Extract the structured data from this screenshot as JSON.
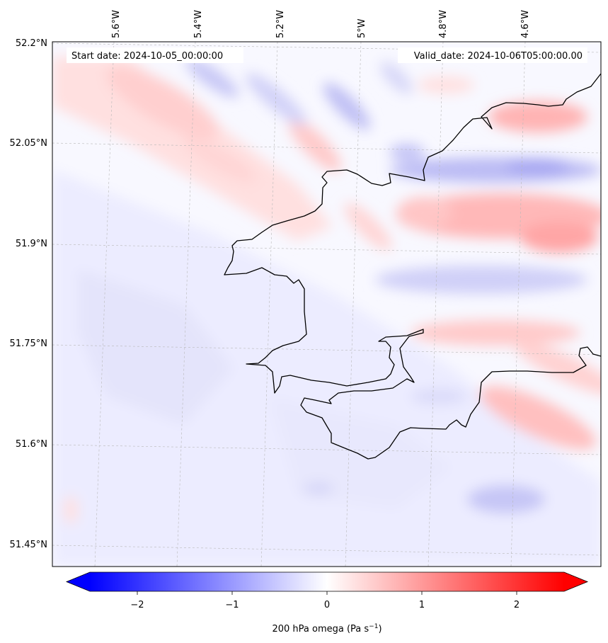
{
  "map": {
    "start_label": "Start date: 2024-10-05_00:00:00",
    "valid_label": "Valid_date: 2024-10-06T05:00:00.00",
    "lon_labels": [
      "5.6°W",
      "5.4°W",
      "5.2°W",
      "5°W",
      "4.8°W",
      "4.6°W"
    ],
    "lat_labels": [
      "52.2°N",
      "52.05°N",
      "51.9°N",
      "51.75°N",
      "51.6°N",
      "51.45°N"
    ],
    "field": "200 hPa omega"
  },
  "colorbar": {
    "ticks": [
      -2,
      -1,
      0,
      1,
      2
    ],
    "label_main": "200 hPa omega (Pa s",
    "label_sup": "−1",
    "label_end": ")",
    "range": [
      -2.5,
      2.5
    ],
    "colors": {
      "low": "#0000ff",
      "mid": "#ffffff",
      "high": "#ff0000"
    }
  }
}
